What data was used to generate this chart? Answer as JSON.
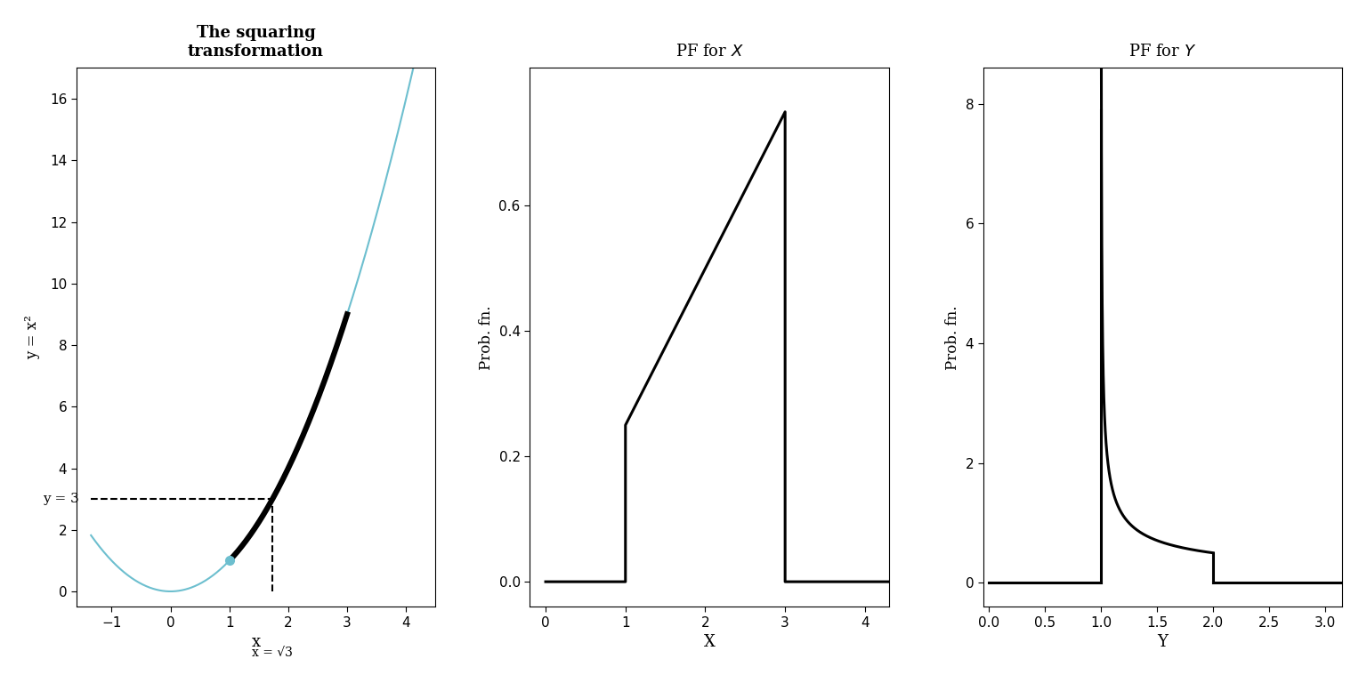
{
  "fig_width": 15.36,
  "fig_height": 7.68,
  "panel1": {
    "title_line1": "The squaring",
    "title_line2": "transformation",
    "xlabel": "x",
    "ylabel": "y = x²",
    "xlim": [
      -1.6,
      4.5
    ],
    "ylim": [
      -0.5,
      17.0
    ],
    "xticks": [
      -1,
      0,
      1,
      2,
      3,
      4
    ],
    "yticks": [
      0,
      2,
      4,
      6,
      8,
      10,
      12,
      14,
      16
    ],
    "thin_color": "#6dbfcf",
    "thick_color": "black",
    "thin_lw": 1.5,
    "thick_lw": 4.5,
    "x_full_min": -1.35,
    "x_full_max": 4.12,
    "x_thick_min": 1.0,
    "x_thick_max": 3.0,
    "dashed_y": 3.0,
    "dashed_x": 1.7320508075688772,
    "dot_x": 1.0,
    "dot_y": 1.0,
    "dot_color": "#6dbfcf",
    "y_label_text": "y = 3",
    "sqrt3_text": "x = √3",
    "dashed_lw": 1.5,
    "dashed_color": "black"
  },
  "panel2": {
    "title_normal": "PF for ",
    "title_italic": "X",
    "xlabel": "X",
    "ylabel": "Prob. fn.",
    "xlim": [
      -0.2,
      4.3
    ],
    "ylim": [
      -0.04,
      0.82
    ],
    "xticks": [
      0,
      1,
      2,
      3,
      4
    ],
    "yticks": [
      0.0,
      0.2,
      0.4,
      0.6
    ],
    "pdf_x": [
      0.0,
      1.0,
      1.0,
      3.0,
      3.0,
      4.3
    ],
    "pdf_y": [
      0.0,
      0.0,
      0.25,
      0.75,
      0.0,
      0.0
    ],
    "line_color": "black",
    "line_lw": 2.2
  },
  "panel3": {
    "title_normal": "PF for ",
    "title_italic": "Y",
    "xlabel": "Y",
    "ylabel": "Prob. fn.",
    "xlim": [
      -0.05,
      3.15
    ],
    "ylim": [
      -0.4,
      8.6
    ],
    "xticks": [
      0.0,
      0.5,
      1.0,
      1.5,
      2.0,
      2.5,
      3.0
    ],
    "yticks": [
      0,
      2,
      4,
      6,
      8
    ],
    "spike_height": 7.9,
    "curve_end": 2.0,
    "drop_val": 0.5,
    "line_color": "black",
    "line_lw": 2.2
  }
}
